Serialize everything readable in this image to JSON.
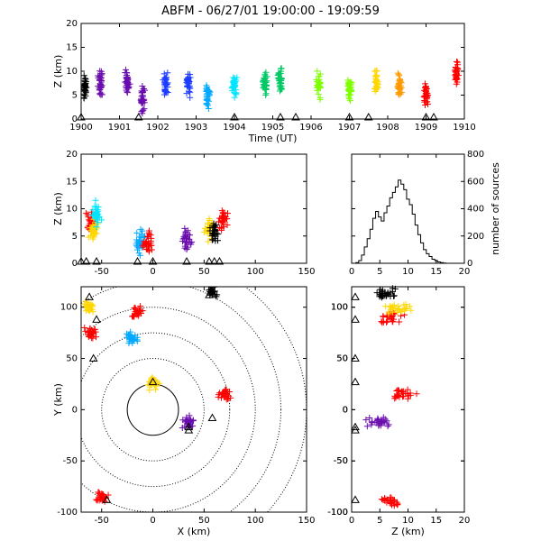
{
  "chart_data": [
    {
      "type": "scatter",
      "panel": "altitude-vs-time",
      "title": "ABFM - 06/27/01 19:00:00 - 19:09:59",
      "xlabel": "Time (UT)",
      "ylabel": "Z (km)",
      "xlim": [
        1900,
        1910
      ],
      "ylim": [
        0,
        20
      ],
      "x_ticks": [
        "1900",
        "1901",
        "1902",
        "1903",
        "1904",
        "1905",
        "1906",
        "1907",
        "1908",
        "1909",
        "1910"
      ],
      "y_ticks": [
        "0",
        "5",
        "10",
        "15",
        "20"
      ],
      "colors": [
        "#000000",
        "#6a0dad",
        "#1e3cff",
        "#00a8ff",
        "#00e5ff",
        "#00c864",
        "#7fff00",
        "#ffd700",
        "#ff9900",
        "#ff0000"
      ],
      "clusters": [
        {
          "x": 1900.1,
          "y": 6.5,
          "color": "#000000"
        },
        {
          "x": 1900.5,
          "y": 7.5,
          "color": "#6a0dad"
        },
        {
          "x": 1901.2,
          "y": 7.5,
          "color": "#6a0dad"
        },
        {
          "x": 1901.6,
          "y": 4.5,
          "color": "#6a0dad"
        },
        {
          "x": 1902.2,
          "y": 7.5,
          "color": "#1e3cff"
        },
        {
          "x": 1902.8,
          "y": 7.5,
          "color": "#1e3cff"
        },
        {
          "x": 1903.3,
          "y": 5.0,
          "color": "#00a8ff"
        },
        {
          "x": 1904.0,
          "y": 7.0,
          "color": "#00e5ff"
        },
        {
          "x": 1904.8,
          "y": 7.5,
          "color": "#00c864"
        },
        {
          "x": 1905.2,
          "y": 8.0,
          "color": "#00c864"
        },
        {
          "x": 1906.2,
          "y": 7.0,
          "color": "#7fff00"
        },
        {
          "x": 1907.0,
          "y": 6.0,
          "color": "#7fff00"
        },
        {
          "x": 1907.7,
          "y": 7.5,
          "color": "#ffd700"
        },
        {
          "x": 1908.3,
          "y": 7.0,
          "color": "#ff9900"
        },
        {
          "x": 1909.0,
          "y": 5.0,
          "color": "#ff0000"
        },
        {
          "x": 1909.8,
          "y": 9.5,
          "color": "#ff0000"
        }
      ],
      "triangles_x": [
        1900.0,
        1901.5,
        1904.0,
        1905.2,
        1905.6,
        1907.0,
        1907.5,
        1909.0,
        1909.2
      ]
    },
    {
      "type": "scatter",
      "panel": "altitude-vs-x",
      "ylabel": "Z (km)",
      "xlim": [
        -70,
        150
      ],
      "ylim": [
        0,
        20
      ],
      "x_ticks": [
        "-50",
        "0",
        "50",
        "100",
        "150"
      ],
      "y_ticks": [
        "0",
        "5",
        "10",
        "15",
        "20"
      ],
      "clusters": [
        {
          "x": -60,
          "y": 7.5,
          "color": "#ff0000"
        },
        {
          "x": -58,
          "y": 6.0,
          "color": "#ffd700"
        },
        {
          "x": -55,
          "y": 9.0,
          "color": "#00e5ff"
        },
        {
          "x": -12,
          "y": 4.0,
          "color": "#00a8ff"
        },
        {
          "x": -5,
          "y": 4.0,
          "color": "#ff0000"
        },
        {
          "x": 33,
          "y": 4.5,
          "color": "#6a0dad"
        },
        {
          "x": 55,
          "y": 6.5,
          "color": "#ffd700"
        },
        {
          "x": 60,
          "y": 5.5,
          "color": "#000000"
        },
        {
          "x": 68,
          "y": 8.0,
          "color": "#ff0000"
        }
      ],
      "triangles_x": [
        -70,
        -65,
        -55,
        -15,
        0,
        33,
        55,
        60,
        65
      ]
    },
    {
      "type": "histogram",
      "panel": "altitude-histogram",
      "xlabel": "",
      "ylabel": "number of sources",
      "xlim": [
        0,
        20
      ],
      "ylim": [
        0,
        800
      ],
      "x_ticks": [
        "0",
        "5",
        "10",
        "15",
        "20"
      ],
      "y_ticks": [
        "0",
        "200",
        "400",
        "600",
        "800"
      ],
      "bin_width": 0.5,
      "x": [
        1,
        1.5,
        2,
        2.5,
        3,
        3.5,
        4,
        4.5,
        5,
        5.5,
        6,
        6.5,
        7,
        7.5,
        8,
        8.5,
        9,
        9.5,
        10,
        10.5,
        11,
        11.5,
        12,
        12.5,
        13,
        13.5,
        14,
        14.5,
        15,
        15.5,
        16,
        16.5,
        17
      ],
      "values": [
        5,
        20,
        60,
        120,
        180,
        250,
        330,
        380,
        340,
        310,
        370,
        420,
        480,
        520,
        560,
        610,
        580,
        540,
        470,
        430,
        360,
        280,
        210,
        150,
        100,
        70,
        50,
        30,
        20,
        10,
        5,
        2,
        0
      ]
    },
    {
      "type": "scatter",
      "panel": "plan-view",
      "xlabel": "X (km)",
      "ylabel": "Y (km)",
      "xlim": [
        -70,
        150
      ],
      "ylim": [
        -100,
        120
      ],
      "x_ticks": [
        "-50",
        "0",
        "50",
        "100",
        "150"
      ],
      "y_ticks": [
        "-100",
        "-50",
        "0",
        "50",
        "100"
      ],
      "range_rings_km": [
        25,
        50,
        75,
        100,
        125,
        150
      ],
      "clusters": [
        {
          "x": -62,
          "y": 100,
          "color": "#ffd700"
        },
        {
          "x": -60,
          "y": 75,
          "color": "#ff0000"
        },
        {
          "x": -15,
          "y": 95,
          "color": "#ff0000"
        },
        {
          "x": -20,
          "y": 70,
          "color": "#00a8ff"
        },
        {
          "x": -50,
          "y": -85,
          "color": "#ff0000"
        },
        {
          "x": 0,
          "y": 25,
          "color": "#ffd700"
        },
        {
          "x": 35,
          "y": -12,
          "color": "#6a0dad"
        },
        {
          "x": 58,
          "y": 115,
          "color": "#000000"
        },
        {
          "x": 70,
          "y": 15,
          "color": "#ff0000"
        }
      ]
    },
    {
      "type": "scatter",
      "panel": "y-vs-altitude",
      "xlabel": "Z (km)",
      "xlim": [
        0,
        20
      ],
      "ylim": [
        -100,
        120
      ],
      "x_ticks": [
        "0",
        "5",
        "10",
        "15",
        "20"
      ],
      "y_ticks": [
        "-100",
        "-50",
        "0",
        "50",
        "100"
      ],
      "clusters": [
        {
          "x": 7,
          "y": 90,
          "color": "#ff0000"
        },
        {
          "x": 8,
          "y": 100,
          "color": "#ffd700"
        },
        {
          "x": 6,
          "y": 115,
          "color": "#000000"
        },
        {
          "x": 9,
          "y": 15,
          "color": "#ff0000"
        },
        {
          "x": 5,
          "y": -12,
          "color": "#6a0dad"
        },
        {
          "x": 7,
          "y": -90,
          "color": "#ff0000"
        }
      ]
    }
  ]
}
